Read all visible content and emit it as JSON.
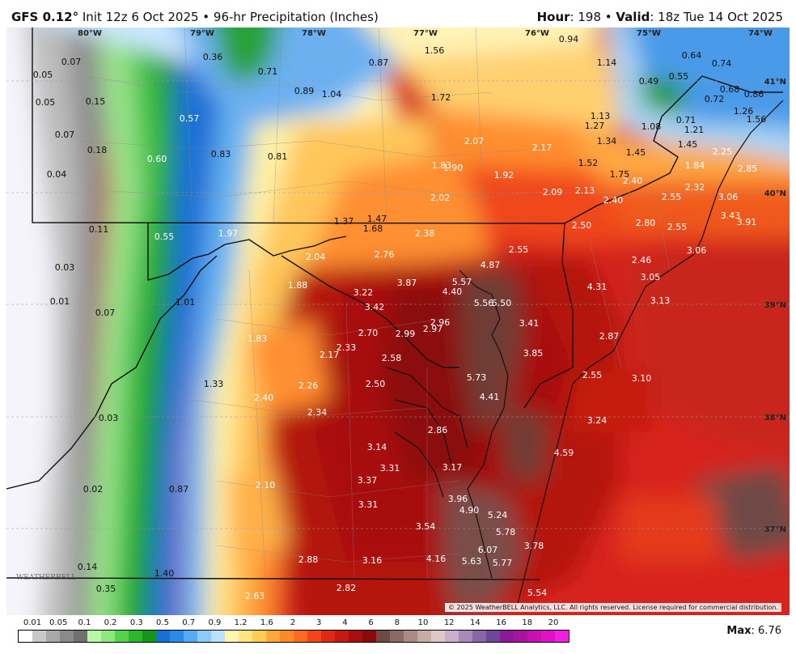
{
  "header": {
    "model": "GFS 0.12",
    "degree": "°",
    "init": " Init 12z 6 Oct 2025 • 96-hr Precipitation (Inches)",
    "hour_label": "Hour",
    "hour_value": ": 198 • ",
    "valid_label": "Valid",
    "valid_value": ": 18z Tue 14 Oct 2025"
  },
  "map": {
    "longitudes": [
      "80°W",
      "79°W",
      "78°W",
      "77°W",
      "76°W",
      "75°W",
      "74°W"
    ],
    "latitudes": [
      "41°N",
      "40°N",
      "39°N",
      "38°N",
      "37°N"
    ],
    "copyright": "© 2025 WeatherBELL Analytics, LLC. All rights reserved. License required for commercial distribution.",
    "logo": "WEATHERBELL",
    "values": [
      "0.07",
      "0.05",
      "0.05",
      "0.07",
      "0.04",
      "0.15",
      "0.18",
      "0.11",
      "0.03",
      "0.01",
      "0.07",
      "0.03",
      "0.02",
      "0.14",
      "0.35",
      "0.36",
      "0.71",
      "0.57",
      "0.60",
      "0.83",
      "0.81",
      "0.89",
      "1.04",
      "0.87",
      "1.56",
      "1.72",
      "0.94",
      "1.14",
      "0.64",
      "0.74",
      "0.49",
      "0.55",
      "0.86",
      "0.68",
      "0.72",
      "1.26",
      "1.56",
      "1.13",
      "1.27",
      "1.08",
      "0.71",
      "1.21",
      "1.34",
      "1.45",
      "1.45",
      "1.52",
      "1.75",
      "2.25",
      "2.85",
      "2.07",
      "2.17",
      "1.83",
      "1.90",
      "1.92",
      "2.02",
      "2.09",
      "2.13",
      "2.40",
      "1.84",
      "2.32",
      "2.40",
      "2.55",
      "3.06",
      "1.37",
      "1.47",
      "1.68",
      "0.55",
      "1.97",
      "2.38",
      "2.50",
      "2.80",
      "2.55",
      "3.43",
      "3.91",
      "2.04",
      "2.76",
      "4.87",
      "2.55",
      "2.46",
      "3.06",
      "1.88",
      "3.22",
      "3.87",
      "5.57",
      "4.40",
      "5.56",
      "5.50",
      "4.31",
      "3.05",
      "1.01",
      "3.42",
      "3.13",
      "2.96",
      "2.97",
      "3.41",
      "2.70",
      "2.99",
      "1.83",
      "2.17",
      "2.33",
      "2.58",
      "3.85",
      "2.87",
      "1.33",
      "2.26",
      "2.50",
      "5.73",
      "2.55",
      "3.10",
      "4.41",
      "2.40",
      "2.34",
      "3.24",
      "2.86",
      "3.14",
      "4.59",
      "3.31",
      "3.37",
      "3.17",
      "2.10",
      "0.87",
      "3.31",
      "3.96",
      "4.90",
      "5.24",
      "3.54",
      "5.78",
      "3.78",
      "6.07",
      "4.16",
      "5.63",
      "5.77",
      "2.88",
      "3.16",
      "1.40",
      "5.54",
      "2.82",
      "2.63"
    ]
  },
  "legend": {
    "labels": [
      "0.01",
      "0.05",
      "0.1",
      "0.2",
      "0.3",
      "0.5",
      "0.7",
      "0.9",
      "1.2",
      "1.6",
      "2",
      "3",
      "4",
      "6",
      "8",
      "10",
      "12",
      "14",
      "16",
      "18",
      "20"
    ],
    "colors": [
      "#ffffff",
      "#c8c8c8",
      "#a8a8a8",
      "#8a8a8a",
      "#707070",
      "#b8f7a8",
      "#8ce87c",
      "#55d14e",
      "#28b82a",
      "#14961a",
      "#1a6ed6",
      "#2a8ae6",
      "#56aaf2",
      "#8ccaf8",
      "#b8e2fa",
      "#fff6b0",
      "#ffe680",
      "#ffcc55",
      "#ffa93a",
      "#ff8a2a",
      "#ff6a20",
      "#f2461a",
      "#de2a14",
      "#c51a10",
      "#a80e0c",
      "#8a0a08",
      "#6e4a44",
      "#8c6a64",
      "#aa8a84",
      "#c8aaa6",
      "#dcc8c4",
      "#c8b0cc",
      "#a88ab8",
      "#8a66a8",
      "#6e4898",
      "#8a1a9a",
      "#a8149e",
      "#c810b0",
      "#e012c8",
      "#f020e0"
    ]
  },
  "max": {
    "label": "Max",
    "value": ": 6.76"
  }
}
